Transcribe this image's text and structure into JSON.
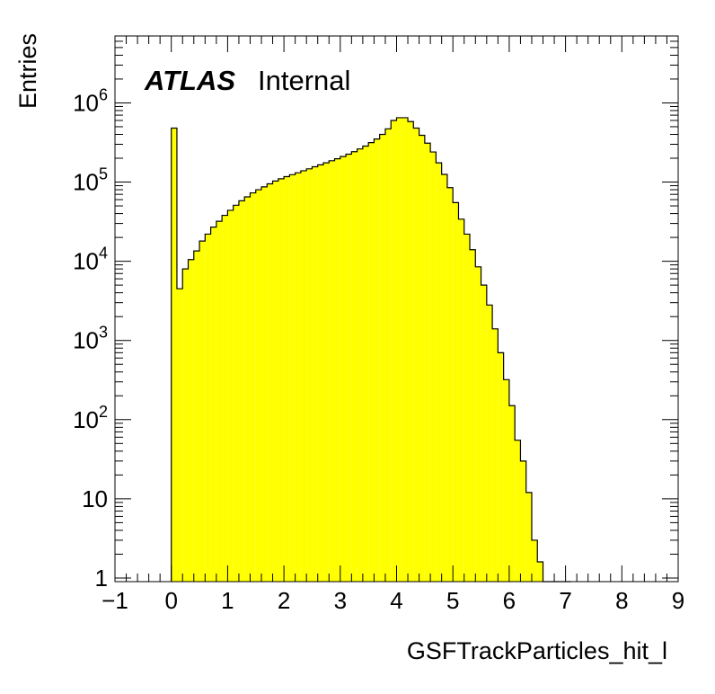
{
  "chart_data": {
    "type": "bar",
    "histogram": true,
    "title": "",
    "xlabel": "GSFTrackParticles_hit_l",
    "ylabel": "Entries",
    "xlim": [
      -1,
      9
    ],
    "ylim": [
      0.9,
      7000000
    ],
    "log_y": true,
    "grid": false,
    "legend": "none",
    "bar_color": "#ffff00",
    "edge_color": "#000000",
    "bin_width": 0.1,
    "x_ticks": [
      "−1",
      "0",
      "1",
      "2",
      "3",
      "4",
      "5",
      "6",
      "7",
      "8",
      "9"
    ],
    "y_ticks": [
      {
        "value": 1,
        "base": "1",
        "exp": ""
      },
      {
        "value": 10,
        "base": "10",
        "exp": ""
      },
      {
        "value": 100,
        "base": "10",
        "exp": "2"
      },
      {
        "value": 1000,
        "base": "10",
        "exp": "3"
      },
      {
        "value": 10000,
        "base": "10",
        "exp": "4"
      },
      {
        "value": 100000,
        "base": "10",
        "exp": "5"
      },
      {
        "value": 1000000,
        "base": "10",
        "exp": "6"
      }
    ],
    "bins_low_edges": [
      0.0,
      0.1,
      0.2,
      0.3,
      0.4,
      0.5,
      0.6,
      0.7,
      0.8,
      0.9,
      1.0,
      1.1,
      1.2,
      1.3,
      1.4,
      1.5,
      1.6,
      1.7,
      1.8,
      1.9,
      2.0,
      2.1,
      2.2,
      2.3,
      2.4,
      2.5,
      2.6,
      2.7,
      2.8,
      2.9,
      3.0,
      3.1,
      3.2,
      3.3,
      3.4,
      3.5,
      3.6,
      3.7,
      3.8,
      3.9,
      4.0,
      4.1,
      4.2,
      4.3,
      4.4,
      4.5,
      4.6,
      4.7,
      4.8,
      4.9,
      5.0,
      5.1,
      5.2,
      5.3,
      5.4,
      5.5,
      5.6,
      5.7,
      5.8,
      5.9,
      6.0,
      6.1,
      6.2,
      6.3,
      6.4,
      6.5,
      6.6,
      6.7,
      6.8,
      6.9,
      7.0
    ],
    "values": [
      480000,
      4500,
      8000,
      10500,
      13500,
      18000,
      22000,
      27000,
      32000,
      38000,
      44000,
      51000,
      58000,
      65000,
      73000,
      80000,
      87000,
      95000,
      103000,
      110000,
      117000,
      124000,
      131000,
      139000,
      147000,
      156000,
      165000,
      175000,
      186000,
      197000,
      210000,
      225000,
      242000,
      262000,
      285000,
      315000,
      350000,
      400000,
      470000,
      600000,
      650000,
      650000,
      580000,
      480000,
      390000,
      310000,
      240000,
      175000,
      125000,
      85000,
      55000,
      34000,
      22000,
      14000,
      8500,
      5000,
      2800,
      1400,
      700,
      320,
      150,
      55,
      30,
      12,
      3,
      1.6,
      0.8,
      0.6,
      0.3,
      0.1,
      0.9
    ],
    "values_note_visible": [
      480000,
      4500,
      8000,
      10500,
      13500,
      18000,
      22000,
      27000,
      32000,
      38000,
      44000,
      51000,
      58000,
      65000,
      73000,
      80000,
      87000,
      95000,
      103000,
      110000,
      117000,
      124000,
      131000,
      139000,
      147000,
      156000,
      165000,
      175000,
      186000,
      197000,
      210000,
      225000,
      242000,
      262000,
      285000,
      315000,
      350000,
      400000,
      470000,
      600000,
      650000,
      650000,
      580000,
      480000,
      390000,
      310000,
      240000,
      175000,
      125000,
      85000,
      55000,
      34000,
      22000,
      14000,
      8500,
      5000,
      2800,
      1400,
      700,
      320,
      150,
      55,
      30,
      12,
      3,
      1.6,
      0.8,
      0.6,
      0.3,
      0.1,
      0.9
    ]
  },
  "labels": {
    "experiment": "ATLAS",
    "status": "Internal"
  }
}
